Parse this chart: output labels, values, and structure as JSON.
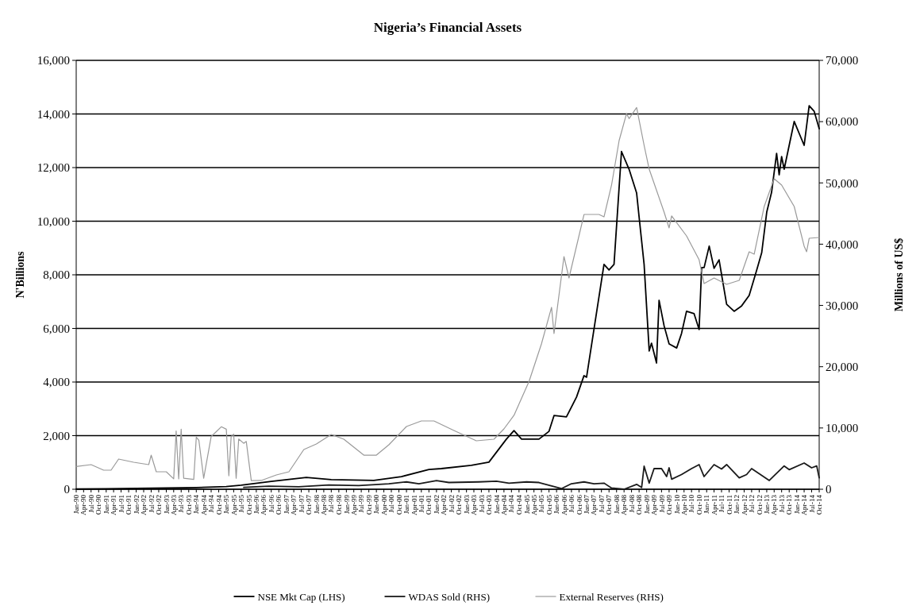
{
  "chart_data": {
    "type": "line",
    "title": "Nigeria’s Financial Assets",
    "ylabel": "N'Billions",
    "y2label": "Millions of US$",
    "grid": "y",
    "legend": "bottom",
    "line_style": "solid",
    "marker": "none",
    "xlim": [
      "1990-01",
      "2014-10"
    ],
    "ylim": [
      0,
      16000
    ],
    "yticks": [
      {
        "value": 0,
        "label": "0"
      },
      {
        "value": 2000,
        "label": "2,000"
      },
      {
        "value": 4000,
        "label": "4,000"
      },
      {
        "value": 6000,
        "label": "6,000"
      },
      {
        "value": 8000,
        "label": "8,000"
      },
      {
        "value": 10000,
        "label": "10,000"
      },
      {
        "value": 12000,
        "label": "12,000"
      },
      {
        "value": 14000,
        "label": "14,000"
      },
      {
        "value": 16000,
        "label": "16,000"
      }
    ],
    "y2lim": [
      0,
      70000
    ],
    "y2ticks": [
      {
        "value": 0,
        "label": "0"
      },
      {
        "value": 10000,
        "label": "10,000"
      },
      {
        "value": 20000,
        "label": "20,000"
      },
      {
        "value": 30000,
        "label": "30,000"
      },
      {
        "value": 40000,
        "label": "40,000"
      },
      {
        "value": 50000,
        "label": "50,000"
      },
      {
        "value": 60000,
        "label": "60,000"
      },
      {
        "value": 70000,
        "label": "70,000"
      }
    ],
    "xticks": [
      {
        "value": "1990-01",
        "label": "Jan-90"
      },
      {
        "value": "1990-04",
        "label": "Apr-90"
      },
      {
        "value": "1990-07",
        "label": "Jul-90"
      },
      {
        "value": "1990-10",
        "label": "Oct-90"
      },
      {
        "value": "1991-01",
        "label": "Jan-91"
      },
      {
        "value": "1991-04",
        "label": "Apr-91"
      },
      {
        "value": "1991-07",
        "label": "Jul-91"
      },
      {
        "value": "1991-10",
        "label": "Oct-91"
      },
      {
        "value": "1992-01",
        "label": "Jan-92"
      },
      {
        "value": "1992-04",
        "label": "Apr-92"
      },
      {
        "value": "1992-07",
        "label": "Jul-92"
      },
      {
        "value": "1992-10",
        "label": "Oct-92"
      },
      {
        "value": "1993-01",
        "label": "Jan-93"
      },
      {
        "value": "1993-04",
        "label": "Apr-93"
      },
      {
        "value": "1993-07",
        "label": "Jul-93"
      },
      {
        "value": "1993-10",
        "label": "Oct-93"
      },
      {
        "value": "1994-01",
        "label": "Jan-94"
      },
      {
        "value": "1994-04",
        "label": "Apr-94"
      },
      {
        "value": "1994-07",
        "label": "Jul-94"
      },
      {
        "value": "1994-10",
        "label": "Oct-94"
      },
      {
        "value": "1995-01",
        "label": "Jan-95"
      },
      {
        "value": "1995-04",
        "label": "Apr-95"
      },
      {
        "value": "1995-07",
        "label": "Jul-95"
      },
      {
        "value": "1995-10",
        "label": "Oct-95"
      },
      {
        "value": "1996-01",
        "label": "Jan-96"
      },
      {
        "value": "1996-04",
        "label": "Apr-96"
      },
      {
        "value": "1996-07",
        "label": "Jul-96"
      },
      {
        "value": "1996-10",
        "label": "Oct-96"
      },
      {
        "value": "1997-01",
        "label": "Jan-97"
      },
      {
        "value": "1997-04",
        "label": "Apr-97"
      },
      {
        "value": "1997-07",
        "label": "Jul-97"
      },
      {
        "value": "1997-10",
        "label": "Oct-97"
      },
      {
        "value": "1998-01",
        "label": "Jan-98"
      },
      {
        "value": "1998-04",
        "label": "Apr-98"
      },
      {
        "value": "1998-07",
        "label": "Jul-98"
      },
      {
        "value": "1998-10",
        "label": "Oct-98"
      },
      {
        "value": "1999-01",
        "label": "Jan-99"
      },
      {
        "value": "1999-04",
        "label": "Apr-99"
      },
      {
        "value": "1999-07",
        "label": "Jul-99"
      },
      {
        "value": "1999-10",
        "label": "Oct-99"
      },
      {
        "value": "2000-01",
        "label": "Jan-00"
      },
      {
        "value": "2000-04",
        "label": "Apr-00"
      },
      {
        "value": "2000-07",
        "label": "Jul-00"
      },
      {
        "value": "2000-10",
        "label": "Oct-00"
      },
      {
        "value": "2001-01",
        "label": "Jan-01"
      },
      {
        "value": "2001-04",
        "label": "Apr-01"
      },
      {
        "value": "2001-07",
        "label": "Jul-01"
      },
      {
        "value": "2001-10",
        "label": "Oct-01"
      },
      {
        "value": "2002-01",
        "label": "Jan-02"
      },
      {
        "value": "2002-04",
        "label": "Apr-02"
      },
      {
        "value": "2002-07",
        "label": "Jul-02"
      },
      {
        "value": "2002-10",
        "label": "Oct-02"
      },
      {
        "value": "2003-01",
        "label": "Jan-03"
      },
      {
        "value": "2003-04",
        "label": "Apr-03"
      },
      {
        "value": "2003-07",
        "label": "Jul-03"
      },
      {
        "value": "2003-10",
        "label": "Oct-03"
      },
      {
        "value": "2004-01",
        "label": "Jan-04"
      },
      {
        "value": "2004-04",
        "label": "Apr-04"
      },
      {
        "value": "2004-07",
        "label": "Jul-04"
      },
      {
        "value": "2004-10",
        "label": "Oct-04"
      },
      {
        "value": "2005-01",
        "label": "Jan-05"
      },
      {
        "value": "2005-04",
        "label": "Apr-05"
      },
      {
        "value": "2005-07",
        "label": "Jul-05"
      },
      {
        "value": "2005-10",
        "label": "Oct-05"
      },
      {
        "value": "2006-01",
        "label": "Jan-06"
      },
      {
        "value": "2006-04",
        "label": "Apr-06"
      },
      {
        "value": "2006-07",
        "label": "Jul-06"
      },
      {
        "value": "2006-10",
        "label": "Oct-06"
      },
      {
        "value": "2007-01",
        "label": "Jan-07"
      },
      {
        "value": "2007-04",
        "label": "Apr-07"
      },
      {
        "value": "2007-07",
        "label": "Jul-07"
      },
      {
        "value": "2007-10",
        "label": "Oct-07"
      },
      {
        "value": "2008-01",
        "label": "Jan-08"
      },
      {
        "value": "2008-04",
        "label": "Apr-08"
      },
      {
        "value": "2008-07",
        "label": "Jul-08"
      },
      {
        "value": "2008-10",
        "label": "Oct-08"
      },
      {
        "value": "2009-01",
        "label": "Jan-09"
      },
      {
        "value": "2009-04",
        "label": "Apr-09"
      },
      {
        "value": "2009-07",
        "label": "Jul-09"
      },
      {
        "value": "2009-10",
        "label": "Oct-09"
      },
      {
        "value": "2010-01",
        "label": "Jan-10"
      },
      {
        "value": "2010-04",
        "label": "Apr-10"
      },
      {
        "value": "2010-07",
        "label": "Jul-10"
      },
      {
        "value": "2010-10",
        "label": "Oct-10"
      },
      {
        "value": "2011-01",
        "label": "Jan-11"
      },
      {
        "value": "2011-04",
        "label": "Apr-11"
      },
      {
        "value": "2011-07",
        "label": "Jul-11"
      },
      {
        "value": "2011-10",
        "label": "Oct-11"
      },
      {
        "value": "2012-01",
        "label": "Jan-12"
      },
      {
        "value": "2012-04",
        "label": "Apr-12"
      },
      {
        "value": "2012-07",
        "label": "Jul-12"
      },
      {
        "value": "2012-10",
        "label": "Oct-12"
      },
      {
        "value": "2013-01",
        "label": "Jan-13"
      },
      {
        "value": "2013-04",
        "label": "Apr-13"
      },
      {
        "value": "2013-07",
        "label": "Jul-13"
      },
      {
        "value": "2013-10",
        "label": "Oct-13"
      },
      {
        "value": "2014-01",
        "label": "Jan-14"
      },
      {
        "value": "2014-04",
        "label": "Apr-14"
      },
      {
        "value": "2014-07",
        "label": "Jul-14"
      },
      {
        "value": "2014-10",
        "label": "Oct-14"
      }
    ],
    "series": [
      {
        "name": "NSE Mkt Cap (LHS)",
        "color": "#000000",
        "axis": "y",
        "x": [
          "1990-01",
          "1991-01",
          "1992-01",
          "1993-01",
          "1994-01",
          "1995-01",
          "1995-07",
          "1996-07",
          "1997-09",
          "1998-07",
          "1999-12",
          "2000-11",
          "2001-10",
          "2002-03",
          "2003-03",
          "2003-10",
          "2004-05",
          "2004-08",
          "2004-11",
          "2005-06",
          "2005-10",
          "2005-12",
          "2006-05",
          "2006-09",
          "2006-12",
          "2007-01",
          "2007-08",
          "2007-10",
          "2007-12",
          "2008-03",
          "2008-06",
          "2008-09",
          "2008-10",
          "2008-12",
          "2009-02",
          "2009-03",
          "2009-05",
          "2009-06",
          "2009-08",
          "2009-10",
          "2010-01",
          "2010-03",
          "2010-05",
          "2010-08",
          "2010-10",
          "2010-11",
          "2010-12",
          "2011-02",
          "2011-04",
          "2011-06",
          "2011-09",
          "2011-12",
          "2012-03",
          "2012-06",
          "2012-09",
          "2012-11",
          "2013-01",
          "2013-03",
          "2013-05",
          "2013-06",
          "2013-07",
          "2013-08",
          "2013-12",
          "2014-04",
          "2014-06",
          "2014-08",
          "2014-10"
        ],
        "values": [
          10,
          20,
          30,
          45,
          65,
          100,
          150,
          290,
          440,
          360,
          330,
          470,
          740,
          770,
          890,
          1010,
          1870,
          2190,
          1870,
          1870,
          2160,
          2750,
          2700,
          3440,
          4240,
          4180,
          8390,
          8180,
          8390,
          12600,
          11940,
          11050,
          10160,
          8390,
          5160,
          5450,
          4710,
          7050,
          6100,
          5420,
          5270,
          5810,
          6640,
          6550,
          5960,
          8270,
          8270,
          9070,
          8240,
          8560,
          6900,
          6640,
          6840,
          7230,
          8180,
          8830,
          10340,
          11080,
          12530,
          11730,
          12410,
          11940,
          13720,
          12830,
          14310,
          14100,
          13450
        ]
      },
      {
        "name": "WDAS Sold (RHS)",
        "color": "#1a1a1a",
        "axis": "y2",
        "x": [
          "1995-08",
          "1996-06",
          "1997-06",
          "1998-06",
          "1999-06",
          "2000-06",
          "2001-01",
          "2001-06",
          "2002-01",
          "2002-06",
          "2003-06",
          "2004-01",
          "2004-06",
          "2005-01",
          "2005-06",
          "2006-03",
          "2006-07",
          "2006-12",
          "2007-04",
          "2007-08",
          "2007-11",
          "2008-04",
          "2008-09",
          "2008-11",
          "2008-12",
          "2009-02",
          "2009-04",
          "2009-07",
          "2009-09",
          "2009-10",
          "2009-11",
          "2010-03",
          "2010-07",
          "2010-10",
          "2010-12",
          "2011-04",
          "2011-07",
          "2011-09",
          "2012-02",
          "2012-05",
          "2012-07",
          "2013-02",
          "2013-08",
          "2013-10",
          "2014-04",
          "2014-07",
          "2014-09",
          "2014-10"
        ],
        "values": [
          300,
          500,
          400,
          700,
          600,
          900,
          1200,
          900,
          1400,
          1100,
          1200,
          1300,
          1000,
          1200,
          1100,
          100,
          900,
          1200,
          900,
          1000,
          200,
          0,
          800,
          300,
          3760,
          1000,
          3370,
          3370,
          2070,
          3500,
          1640,
          2400,
          3370,
          4020,
          2070,
          4020,
          3300,
          4020,
          1860,
          2400,
          3370,
          1430,
          3800,
          3200,
          4280,
          3500,
          3800,
          1860
        ]
      },
      {
        "name": "External Reserves (RHS)",
        "color": "#9a9a9a",
        "axis": "y2",
        "x": [
          "1990-01",
          "1990-07",
          "1990-12",
          "1991-03",
          "1991-06",
          "1991-12",
          "1992-06",
          "1992-07",
          "1992-09",
          "1993-01",
          "1993-04",
          "1993-05",
          "1993-06",
          "1993-07",
          "1993-08",
          "1993-12",
          "1994-01",
          "1994-02",
          "1994-04",
          "1994-07",
          "1994-09",
          "1994-11",
          "1995-01",
          "1995-02",
          "1995-03",
          "1995-04",
          "1995-05",
          "1995-06",
          "1995-08",
          "1995-09",
          "1995-11",
          "1996-03",
          "1996-09",
          "1997-02",
          "1997-08",
          "1998-01",
          "1998-07",
          "1998-12",
          "1999-08",
          "2000-01",
          "2000-06",
          "2001-01",
          "2001-07",
          "2001-12",
          "2002-08",
          "2003-05",
          "2003-12",
          "2004-04",
          "2004-08",
          "2005-02",
          "2005-07",
          "2005-11",
          "2005-12",
          "2006-04",
          "2006-06",
          "2006-12",
          "2007-06",
          "2007-08",
          "2007-11",
          "2008-02",
          "2008-05",
          "2008-06",
          "2008-09",
          "2008-12",
          "2009-02",
          "2009-08",
          "2009-10",
          "2009-11",
          "2010-05",
          "2010-10",
          "2010-12",
          "2011-04",
          "2011-09",
          "2012-02",
          "2012-06",
          "2012-08",
          "2012-12",
          "2013-04",
          "2013-07",
          "2013-12",
          "2014-04",
          "2014-05",
          "2014-06",
          "2014-10"
        ],
        "values": [
          3700,
          4020,
          3110,
          3110,
          4930,
          4410,
          4020,
          5570,
          2850,
          2850,
          1700,
          9500,
          1700,
          9800,
          1800,
          1600,
          8500,
          8000,
          1800,
          8600,
          9400,
          10200,
          9800,
          2200,
          8600,
          9000,
          1800,
          8200,
          7500,
          7800,
          1400,
          1430,
          2330,
          2850,
          6480,
          7390,
          8940,
          8170,
          5570,
          5570,
          7260,
          10240,
          11150,
          11150,
          9590,
          7910,
          8170,
          9850,
          12060,
          17630,
          23720,
          29690,
          25410,
          37980,
          34480,
          44850,
          44850,
          44460,
          49650,
          56910,
          61300,
          60500,
          62300,
          56130,
          52240,
          45240,
          42650,
          44600,
          41350,
          37460,
          33570,
          34480,
          33450,
          34090,
          38760,
          38370,
          46150,
          50690,
          49650,
          46150,
          39670,
          38760,
          40960,
          41090
        ]
      }
    ]
  }
}
